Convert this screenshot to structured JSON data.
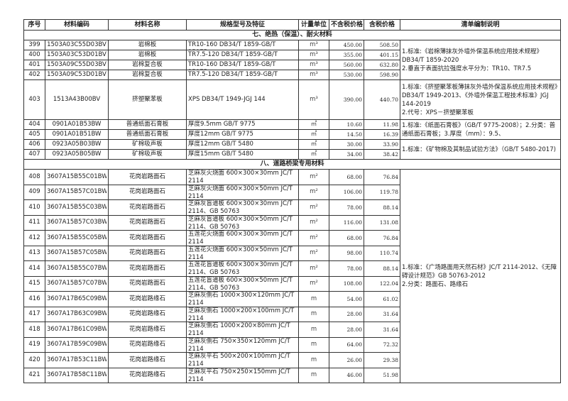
{
  "headers": [
    "序号",
    "材料编码",
    "材料名称",
    "规格型号及特征",
    "计量单位",
    "不含税价格",
    "含税价格",
    "清单编制说明"
  ],
  "sections": {
    "s7": "七、绝热（保温）、耐火材料",
    "s8": "八、道路桥梁专用材料"
  },
  "notes": {
    "n1": "1.标准:《岩棉薄抹灰外墙外保温系统应用技术规程》DB34/T 1859-2020\n2.垂直于表面抗拉强度水平分为：TR10、TR7.5",
    "n2": "1.标准:《挤塑聚苯板薄抹灰外墙外保温系统应用技术规程》DB34/T 1949-2013、《外墙外保温工程技术标准》JGJ 144-2019\n2.代号：XPS－挤塑聚苯板",
    "n3": "1.标准:《纸面石膏板》（GB/T 9775-2008）；2.分类：普通纸面石膏板；3.厚度（mm）：9.5、",
    "n4": "1.标准：《矿物棉及其制品试验方法》（GB/T 5480-2017)",
    "n5": "1.标准：《广场路面用天然石材》JC/T 2114-2012、《无障碍设计规范》GB 50763-2012\n2.分类：路面石、路缘石"
  },
  "rows": [
    {
      "no": "399",
      "code": "1503A03C55D03BV",
      "name": "岩棉板",
      "spec": "TR10-160  DB34/T 1859-GB/T 25975",
      "unit": "m³",
      "price": "450.00",
      "tax_price": "508.50"
    },
    {
      "no": "400",
      "code": "1503A03C53D01BV",
      "name": "岩棉板",
      "spec": "TR7.5-120  DB34/T 1859-GB/T",
      "unit": "m³",
      "price": "355.00",
      "tax_price": "401.15"
    },
    {
      "no": "401",
      "code": "1503A09C55D03BV",
      "name": "岩棉复合板",
      "spec": "TR10-160  DB34/T 1859-GB/T 25975",
      "unit": "m³",
      "price": "560.00",
      "tax_price": "632.80"
    },
    {
      "no": "402",
      "code": "1503A09C53D01BV",
      "name": "岩棉复合板",
      "spec": "TR7.5-120  DB34/T 1859-GB/T",
      "unit": "m³",
      "price": "530.00",
      "tax_price": "598.90"
    },
    {
      "no": "403",
      "code": "1513A43B00BV",
      "name": "挤塑聚苯板",
      "spec": "XPS  DB34/T 1949-JGJ 144",
      "unit": "m³",
      "price": "390.00",
      "tax_price": "440.70"
    },
    {
      "no": "404",
      "code": "0901A01B53BW",
      "name": "普通纸面石膏板",
      "spec": "厚度9.5mm   GB/T 9775",
      "unit": "㎡",
      "price": "10.60",
      "tax_price": "11.98"
    },
    {
      "no": "405",
      "code": "0901A01B51BW",
      "name": "普通纸面石膏板",
      "spec": "厚度12mm   GB/T 9775",
      "unit": "㎡",
      "price": "14.50",
      "tax_price": "16.39"
    },
    {
      "no": "406",
      "code": "0923A05B03BW",
      "name": "矿棉吸声板",
      "spec": "厚度12mm  GB/T 5480",
      "unit": "㎡",
      "price": "30.00",
      "tax_price": "33.90"
    },
    {
      "no": "407",
      "code": "0923A05B05BW",
      "name": "矿棉吸声板",
      "spec": "厚度15mm   GB/T 5480",
      "unit": "㎡",
      "price": "34.00",
      "tax_price": "38.42"
    },
    {
      "no": "408",
      "code": "3607A15B55C01BW",
      "name": "花岗岩路面石",
      "spec": "芝麻灰火烧面 600×300×30mm JC/T 2114",
      "unit": "m²",
      "price": "68.00",
      "tax_price": "76.84"
    },
    {
      "no": "409",
      "code": "3607A15B57C01BW",
      "name": "花岗岩路面石",
      "spec": "芝麻灰火烧面 600×300×50mm JC/T 2114",
      "unit": "m²",
      "price": "106.00",
      "tax_price": "119.78"
    },
    {
      "no": "410",
      "code": "3607A15B55C03BW",
      "name": "花岗岩路面石",
      "spec": "芝麻灰盲道板 600×300×30mm JC/T 2114、GB 50763",
      "unit": "m²",
      "price": "78.00",
      "tax_price": "88.14"
    },
    {
      "no": "411",
      "code": "3607A15B57C03BW",
      "name": "花岗岩路面石",
      "spec": "芝麻灰盲道板 600×300×50mm JC/T 2114、GB 50763",
      "unit": "m²",
      "price": "116.00",
      "tax_price": "131.08"
    },
    {
      "no": "412",
      "code": "3607A15B55C05BW",
      "name": "花岗岩路面石",
      "spec": "五莲花火烧面 600×300×30mm JC/T 2114",
      "unit": "m²",
      "price": "68.00",
      "tax_price": "76.84"
    },
    {
      "no": "413",
      "code": "3607A15B57C05BW",
      "name": "花岗岩路面石",
      "spec": "五莲花火烧面 600×300×50mm JC/T 2114",
      "unit": "m²",
      "price": "98.00",
      "tax_price": "110.74"
    },
    {
      "no": "414",
      "code": "3607A15B55C07BW",
      "name": "花岗岩路面石",
      "spec": "五莲花盲道板 600×300×30mm JC/T 2114、GB 50763",
      "unit": "m²",
      "price": "78.00",
      "tax_price": "88.14"
    },
    {
      "no": "415",
      "code": "3607A15B57C07BW",
      "name": "花岗岩路面石",
      "spec": "五莲花盲道板 600×300×50mm JC/T 2114、GB 50763",
      "unit": "m²",
      "price": "108.00",
      "tax_price": "122.04"
    },
    {
      "no": "416",
      "code": "3607A17B65C09BW",
      "name": "花岗岩路缘石",
      "spec": "芝麻灰侧石  1000×300×120mm JC/T 2114",
      "unit": "m",
      "price": "54.00",
      "tax_price": "61.02"
    },
    {
      "no": "417",
      "code": "3607A17B63C09BW",
      "name": "花岗岩路缘石",
      "spec": "芝麻灰侧石  1000×200×100mm JC/T 2114",
      "unit": "m",
      "price": "28.00",
      "tax_price": "31.64"
    },
    {
      "no": "418",
      "code": "3607A17B61C09BW",
      "name": "花岗岩路缘石",
      "spec": "芝麻灰侧石  1000×200×80mm JC/T 2114",
      "unit": "m",
      "price": "28.00",
      "tax_price": "31.64"
    },
    {
      "no": "419",
      "code": "3607A17B59C09BW",
      "name": "花岗岩路缘石",
      "spec": "芝麻灰侧石  750×350×120mm JC/T 2114",
      "unit": "m",
      "price": "64.00",
      "tax_price": "72.32"
    },
    {
      "no": "420",
      "code": "3607A17B53C11BW",
      "name": "花岗岩路缘石",
      "spec": "芝麻灰平石  500×200×100mm JC/T 2114",
      "unit": "m",
      "price": "26.00",
      "tax_price": "29.38"
    },
    {
      "no": "421",
      "code": "3607A17B58C11BW",
      "name": "花岗岩路缘石",
      "spec": "芝麻灰平石  750×250×150mm JC/T 2114",
      "unit": "m",
      "price": "46.00",
      "tax_price": "51.98"
    }
  ]
}
